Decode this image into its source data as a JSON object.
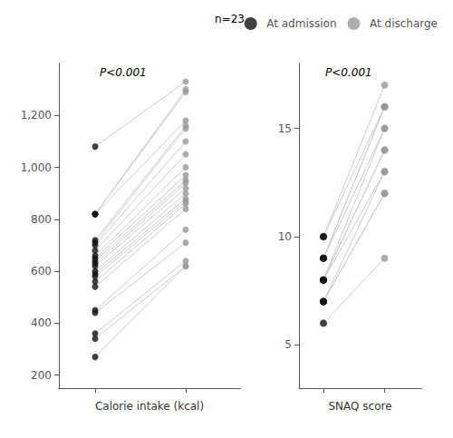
{
  "chart_data": [
    {
      "type": "slope",
      "xlabel": "Calorie intake (kcal)",
      "annotations": [
        "P<0.001",
        "n=23"
      ],
      "series": [
        {
          "name": "At admission",
          "color": "#111111",
          "values": [
            1080,
            820,
            820,
            820,
            720,
            710,
            700,
            680,
            660,
            650,
            640,
            630,
            620,
            600,
            590,
            580,
            560,
            540,
            450,
            440,
            360,
            340,
            270
          ]
        },
        {
          "name": "At discharge",
          "color": "#999999",
          "values": [
            1330,
            1300,
            1290,
            1180,
            1160,
            1150,
            1100,
            1050,
            1000,
            970,
            950,
            940,
            920,
            900,
            880,
            870,
            860,
            840,
            760,
            710,
            640,
            620,
            620
          ]
        }
      ],
      "color": "#cccccc",
      "xlim": [
        0.6,
        2.6
      ],
      "xticks": [
        1,
        2
      ],
      "ylim": [
        150,
        1400
      ],
      "yticks": [
        200,
        400,
        600,
        800,
        {
          "value": 1000,
          "label": "1,000"
        },
        {
          "value": 1200,
          "label": "1,200"
        }
      ],
      "tick_labels": "y",
      "grid": false,
      "legend": "upper right"
    },
    {
      "type": "slope",
      "xlabel": "SNAQ score",
      "annotations": [
        "P<0.001"
      ],
      "series": [
        {
          "name": "At admission",
          "color": "#111111",
          "values": [
            10,
            10,
            9,
            9,
            9,
            8,
            8,
            8,
            8,
            7,
            7,
            7,
            6
          ]
        },
        {
          "name": "At discharge",
          "color": "#999999",
          "values": [
            17,
            16,
            16,
            16,
            15,
            15,
            14,
            14,
            13,
            13,
            12,
            12,
            9
          ]
        }
      ],
      "color": "#cccccc",
      "xlim": [
        0.6,
        2.6
      ],
      "xticks": [
        1,
        2
      ],
      "ylim": [
        3,
        18
      ],
      "yticks": [
        5,
        10,
        15
      ],
      "tick_labels": "y",
      "grid": false
    }
  ]
}
